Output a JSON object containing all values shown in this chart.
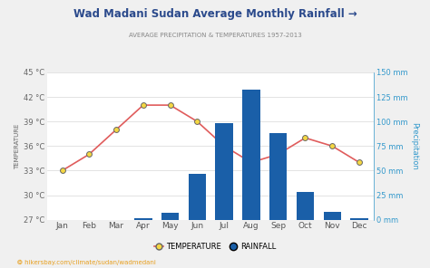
{
  "title": "Wad Madani Sudan Average Monthly Rainfall →",
  "subtitle": "AVERAGE PRECIPITATION & TEMPERATURES 1957-2013",
  "months": [
    "Jan",
    "Feb",
    "Mar",
    "Apr",
    "May",
    "Jun",
    "Jul",
    "Aug",
    "Sep",
    "Oct",
    "Nov",
    "Dec"
  ],
  "temperature": [
    33,
    35,
    38,
    41,
    41,
    39,
    36,
    34,
    35,
    37,
    36,
    34
  ],
  "rainfall": [
    0,
    0,
    0,
    2,
    7,
    47,
    98,
    132,
    88,
    28,
    8,
    2
  ],
  "temp_ylim": [
    27,
    45
  ],
  "temp_yticks": [
    27,
    30,
    33,
    36,
    39,
    42,
    45
  ],
  "rain_ylim": [
    0,
    150
  ],
  "rain_yticks": [
    0,
    25,
    50,
    75,
    100,
    125,
    150
  ],
  "bar_color": "#1a5fa8",
  "line_color": "#e05c5c",
  "marker_face": "#f5d742",
  "marker_edge": "#666666",
  "bg_color": "#f0f0f0",
  "plot_bg_color": "#ffffff",
  "grid_color": "#d8d8d8",
  "title_color": "#2b4a8c",
  "subtitle_color": "#888888",
  "left_axis_color": "#666666",
  "right_axis_color": "#3399cc",
  "watermark": "hikersbay.com/climate/sudan/wadmedani",
  "watermark_color": "#e8a020"
}
